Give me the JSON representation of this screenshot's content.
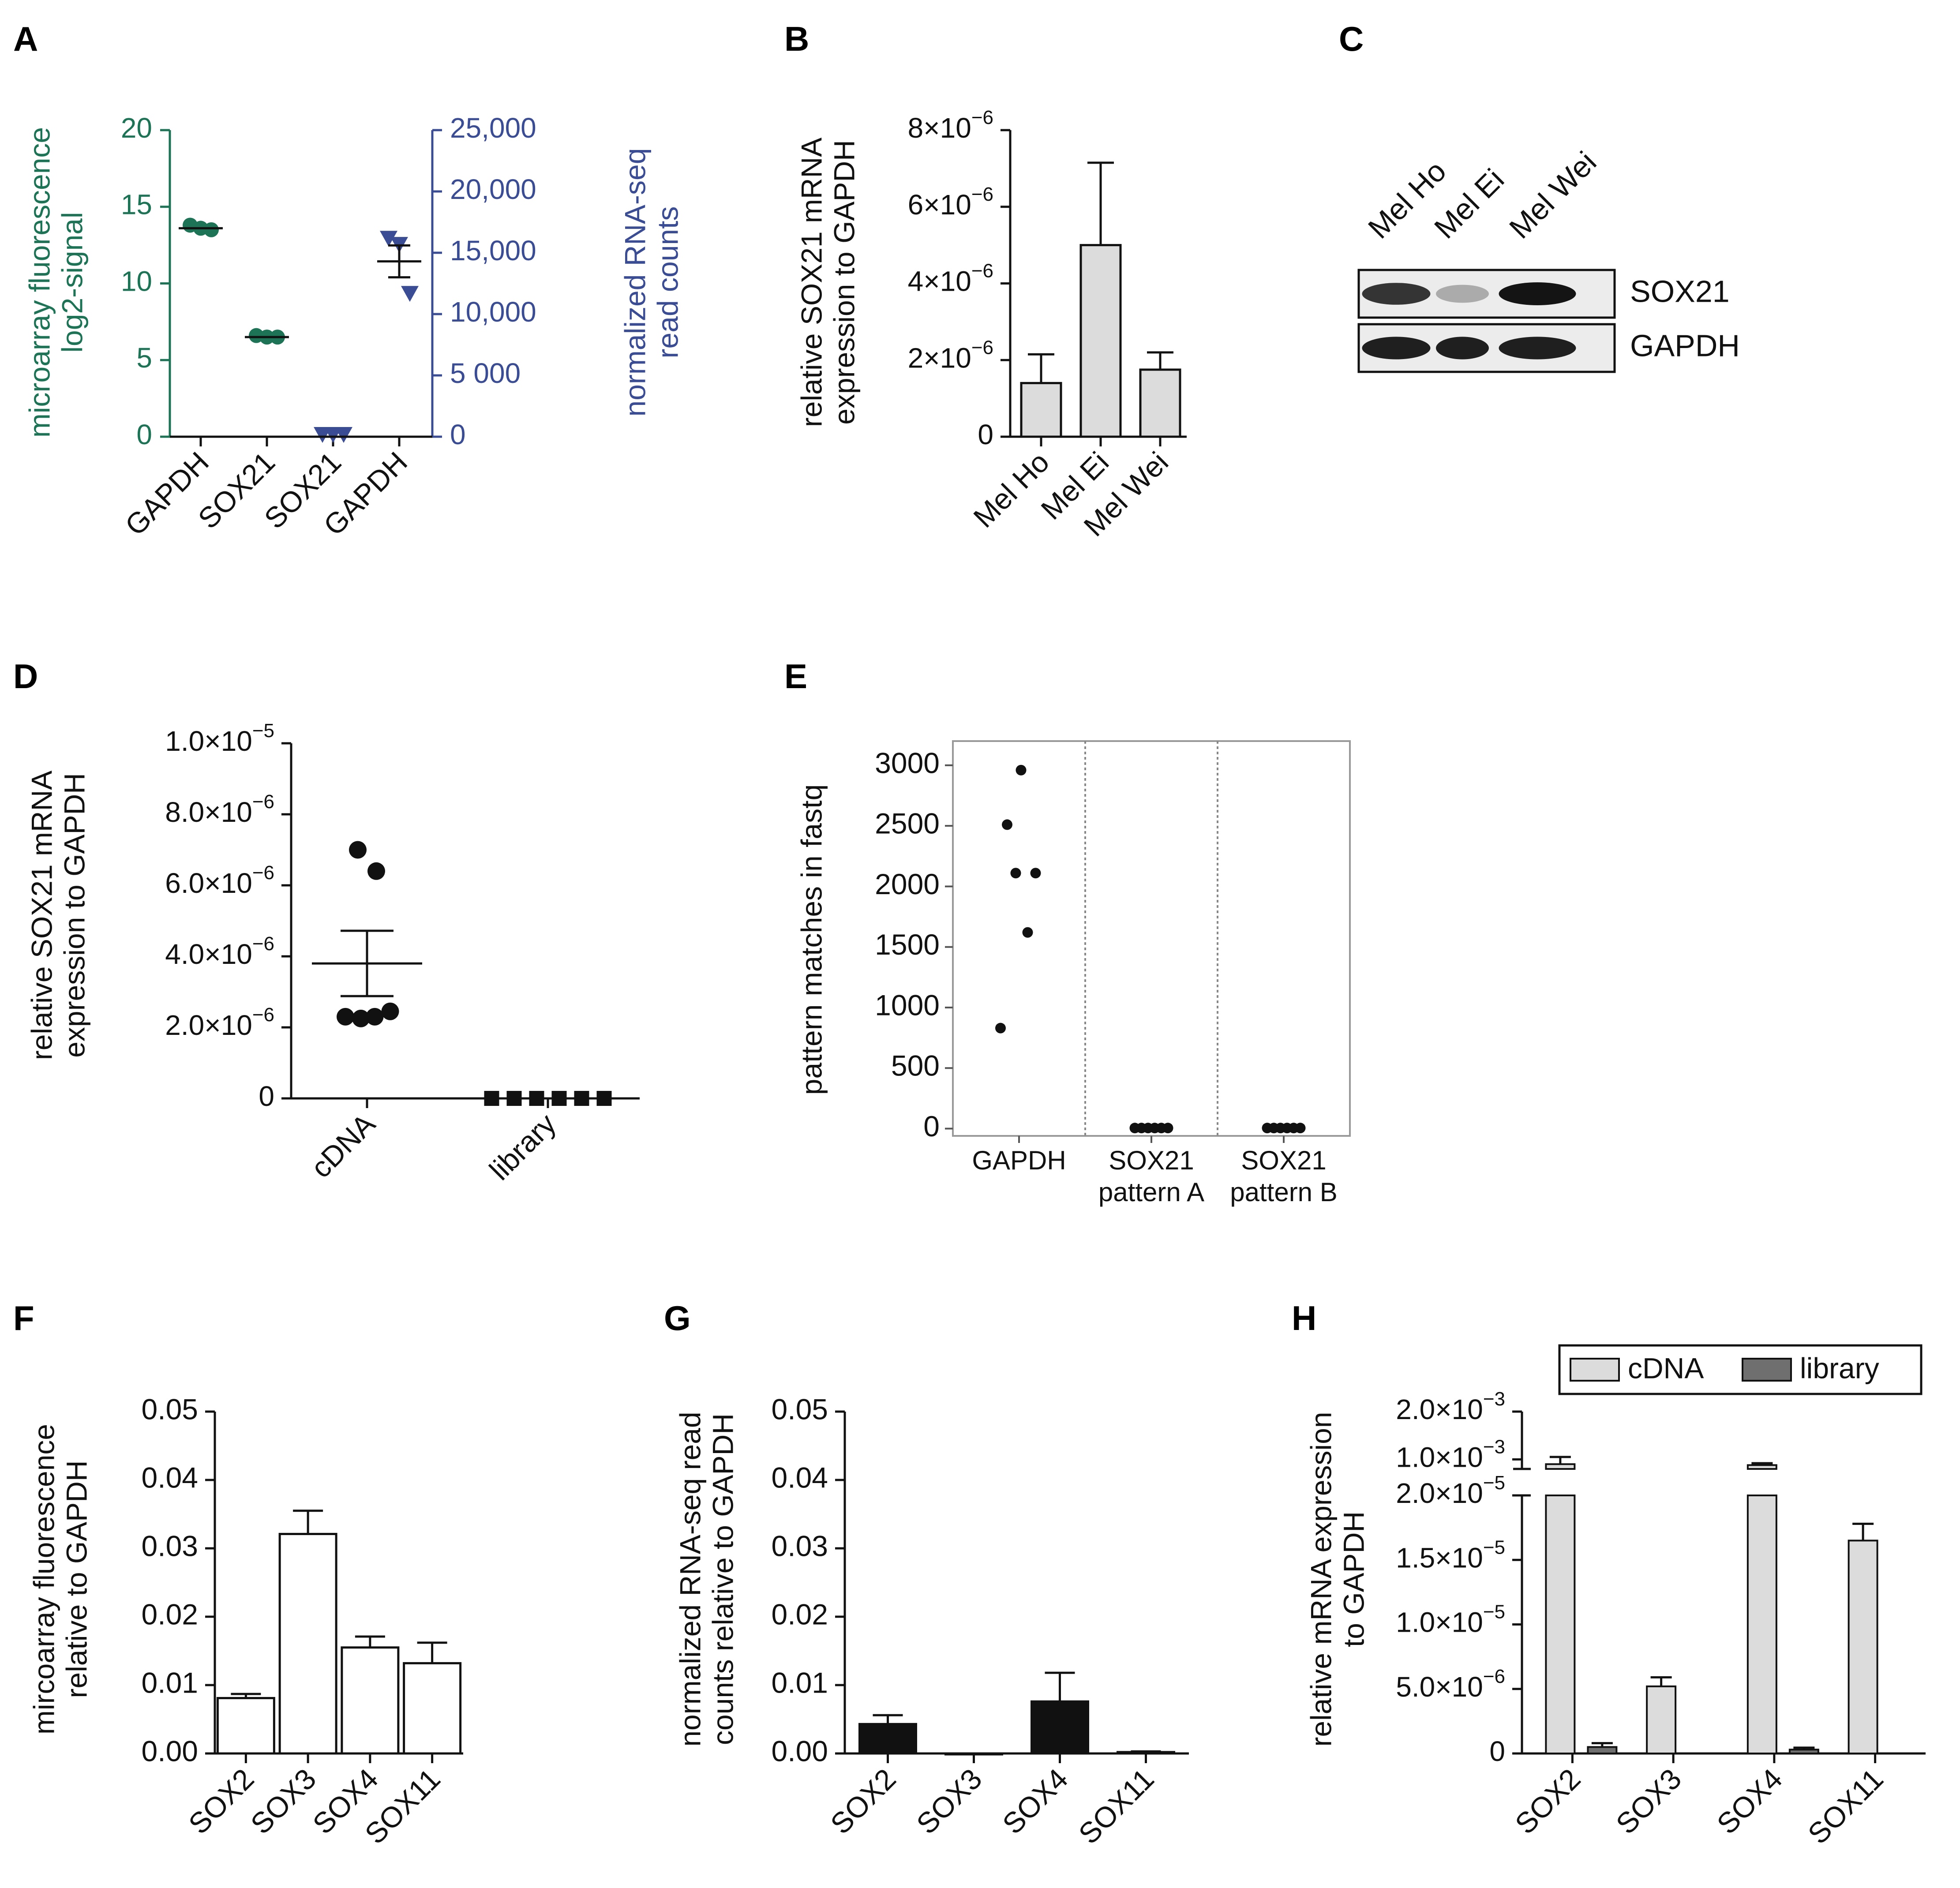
{
  "figure": {
    "colors": {
      "green": "#1d7355",
      "blue": "#3a4c94",
      "black": "#111111",
      "light_bar": "#dcdcdc",
      "dark_bar": "#6f6f6f",
      "white_bar": "#ffffff"
    }
  },
  "chart_data": [
    {
      "panel": "A",
      "type": "scatter",
      "title": "",
      "ylabel_left": [
        "microarray fluorescence",
        "log2-signal"
      ],
      "ylabel_right": [
        "normalized RNA-seq",
        "read counts"
      ],
      "yticks_left": [
        "0",
        "5",
        "10",
        "15",
        "20"
      ],
      "yticks_right": [
        "0",
        "5 000",
        "10,000",
        "15,000",
        "20,000",
        "25,000"
      ],
      "ylim_left": [
        0,
        20
      ],
      "ylim_right": [
        0,
        25000
      ],
      "categories": [
        "GAPDH",
        "SOX21",
        "SOX21",
        "GAPDH"
      ],
      "series": [
        {
          "name": "microarray log2-signal",
          "axis": "left",
          "marker": "circle",
          "color": "green",
          "points": [
            {
              "cat": 0,
              "values": [
                13.8,
                13.6,
                13.5
              ],
              "mean": 13.6
            },
            {
              "cat": 1,
              "values": [
                6.6,
                6.5,
                6.5
              ],
              "mean": 6.5
            }
          ]
        },
        {
          "name": "normalized RNA-seq read counts",
          "axis": "right",
          "marker": "triangle-down",
          "color": "blue",
          "points": [
            {
              "cat": 2,
              "values": [
                0,
                0,
                0
              ],
              "mean": 0
            },
            {
              "cat": 3,
              "values": [
                16000,
                15500,
                11500
              ],
              "mean": 14300,
              "sem": 1300
            }
          ]
        }
      ]
    },
    {
      "panel": "B",
      "type": "bar",
      "ylabel": [
        "relative SOX21 mRNA",
        "expression to GAPDH"
      ],
      "categories": [
        "Mel Ho",
        "Mel Ei",
        "Mel Wei"
      ],
      "values": [
        1.4e-06,
        5e-06,
        1.75e-06
      ],
      "errors": [
        7.5e-07,
        2.15e-06,
        4.5e-07
      ],
      "ylim": [
        0,
        8e-06
      ],
      "yticks": [
        {
          "v": 0,
          "base": "0",
          "exp": ""
        },
        {
          "v": 2e-06,
          "base": "2×10",
          "exp": "−6"
        },
        {
          "v": 4e-06,
          "base": "4×10",
          "exp": "−6"
        },
        {
          "v": 6e-06,
          "base": "6×10",
          "exp": "−6"
        },
        {
          "v": 8e-06,
          "base": "8×10",
          "exp": "−6"
        }
      ]
    },
    {
      "panel": "C",
      "type": "western-blot",
      "lanes": [
        "Mel Ho",
        "Mel Ei",
        "Mel Wei"
      ],
      "bands": [
        {
          "label": "SOX21",
          "intensity": [
            0.85,
            0.3,
            1.0
          ]
        },
        {
          "label": "GAPDH",
          "intensity": [
            0.95,
            0.95,
            0.95
          ]
        }
      ]
    },
    {
      "panel": "D",
      "type": "scatter",
      "ylabel": [
        "relative SOX21 mRNA",
        "expression to GAPDH"
      ],
      "categories": [
        "cDNA",
        "library"
      ],
      "ylim": [
        0,
        1e-05
      ],
      "yticks": [
        {
          "v": 0,
          "base": "0",
          "exp": ""
        },
        {
          "v": 2e-06,
          "base": "2.0×10",
          "exp": "−6"
        },
        {
          "v": 4e-06,
          "base": "4.0×10",
          "exp": "−6"
        },
        {
          "v": 6e-06,
          "base": "6.0×10",
          "exp": "−6"
        },
        {
          "v": 8e-06,
          "base": "8.0×10",
          "exp": "−6"
        },
        {
          "v": 1e-05,
          "base": "1.0×10",
          "exp": "−5"
        }
      ],
      "series": [
        {
          "name": "cDNA",
          "marker": "circle",
          "points": [
            {
              "x": -0.7,
              "y": 2.3e-06
            },
            {
              "x": -0.2,
              "y": 2.25e-06
            },
            {
              "x": 0.25,
              "y": 2.3e-06
            },
            {
              "x": 0.75,
              "y": 2.45e-06
            },
            {
              "x": -0.3,
              "y": 7e-06
            },
            {
              "x": 0.3,
              "y": 6.4e-06
            }
          ],
          "mean": 3.8e-06,
          "sem": 9.2e-07
        },
        {
          "name": "library",
          "marker": "square",
          "points": [
            {
              "x": -0.75,
              "y": 0
            },
            {
              "x": -0.45,
              "y": 0
            },
            {
              "x": -0.15,
              "y": 0
            },
            {
              "x": 0.15,
              "y": 0
            },
            {
              "x": 0.45,
              "y": 0
            },
            {
              "x": 0.75,
              "y": 0
            }
          ]
        }
      ]
    },
    {
      "panel": "E",
      "type": "scatter",
      "ylabel": "pattern matches in fastq",
      "categories": [
        [
          "GAPDH"
        ],
        [
          "SOX21",
          "pattern A"
        ],
        [
          "SOX21",
          "pattern B"
        ]
      ],
      "ylim": [
        -60,
        3200
      ],
      "yticks": [
        "0",
        "500",
        "1000",
        "1500",
        "2000",
        "2500",
        "3000"
      ],
      "yticks_values": [
        0,
        500,
        1000,
        1500,
        2000,
        2500,
        3000
      ],
      "groups": [
        {
          "cat": 0,
          "points": [
            {
              "x": -0.28,
              "y": 830
            },
            {
              "x": -0.18,
              "y": 2510
            },
            {
              "x": -0.05,
              "y": 2110
            },
            {
              "x": 0.03,
              "y": 2960
            },
            {
              "x": 0.13,
              "y": 1620
            },
            {
              "x": 0.25,
              "y": 2110
            }
          ]
        },
        {
          "cat": 1,
          "points": [
            {
              "x": -0.25,
              "y": 5
            },
            {
              "x": -0.15,
              "y": 5
            },
            {
              "x": -0.05,
              "y": 5
            },
            {
              "x": 0.05,
              "y": 5
            },
            {
              "x": 0.15,
              "y": 5
            },
            {
              "x": 0.25,
              "y": 5
            }
          ]
        },
        {
          "cat": 2,
          "points": [
            {
              "x": -0.25,
              "y": 5
            },
            {
              "x": -0.15,
              "y": 5
            },
            {
              "x": -0.05,
              "y": 5
            },
            {
              "x": 0.05,
              "y": 5
            },
            {
              "x": 0.15,
              "y": 5
            },
            {
              "x": 0.25,
              "y": 5
            }
          ]
        }
      ]
    },
    {
      "panel": "F",
      "type": "bar",
      "ylabel": [
        "mircoarray fluorescence",
        "relative to GAPDH"
      ],
      "categories": [
        "SOX2",
        "SOX3",
        "SOX4",
        "SOX11"
      ],
      "values": [
        0.0081,
        0.0321,
        0.0155,
        0.0132
      ],
      "errors": [
        0.0006,
        0.0034,
        0.0016,
        0.003
      ],
      "ylim": [
        0,
        0.05
      ],
      "yticks": [
        "0.00",
        "0.01",
        "0.02",
        "0.03",
        "0.04",
        "0.05"
      ],
      "yticks_values": [
        0,
        0.01,
        0.02,
        0.03,
        0.04,
        0.05
      ]
    },
    {
      "panel": "G",
      "type": "bar",
      "ylabel": [
        "normalized RNA-seq read",
        "counts relative to GAPDH"
      ],
      "categories": [
        "SOX2",
        "SOX3",
        "SOX4",
        "SOX11"
      ],
      "values": [
        0.0043,
        0,
        0.0076,
        0.0002
      ],
      "errors": [
        0.0013,
        0,
        0.0042,
        0.0001
      ],
      "ylim": [
        0,
        0.05
      ],
      "yticks": [
        "0.00",
        "0.01",
        "0.02",
        "0.03",
        "0.04",
        "0.05"
      ],
      "yticks_values": [
        0,
        0.01,
        0.02,
        0.03,
        0.04,
        0.05
      ]
    },
    {
      "panel": "H",
      "type": "bar",
      "ylabel": [
        "relative mRNA expression",
        "to GAPDH"
      ],
      "categories": [
        "SOX2",
        "SOX3",
        "SOX4",
        "SOX11"
      ],
      "legend": {
        "position": "top-right",
        "entries": [
          "cDNA",
          "library"
        ]
      },
      "series": [
        {
          "name": "cDNA",
          "values": [
            0.0009,
            5.2e-06,
            0.00088,
            1.65e-05
          ],
          "errors": [
            0.00015,
            7e-07,
            4e-05,
            1.3e-06
          ]
        },
        {
          "name": "library",
          "values": [
            5e-07,
            0,
            3e-07,
            0
          ],
          "errors": [
            3e-07,
            0,
            1.5e-07,
            0
          ]
        }
      ],
      "axis_break": {
        "lower_range": [
          0,
          2e-05
        ],
        "upper_range": [
          0.0008,
          0.002
        ]
      },
      "yticks_lower": [
        {
          "v": 0,
          "base": "0",
          "exp": ""
        },
        {
          "v": 5e-06,
          "base": "5.0×10",
          "exp": "−6"
        },
        {
          "v": 1e-05,
          "base": "1.0×10",
          "exp": "−5"
        },
        {
          "v": 1.5e-05,
          "base": "1.5×10",
          "exp": "−5"
        },
        {
          "v": 2e-05,
          "base": "2.0×10",
          "exp": "−5"
        }
      ],
      "yticks_upper": [
        {
          "v": 0.001,
          "base": "1.0×10",
          "exp": "−3"
        },
        {
          "v": 0.002,
          "base": "2.0×10",
          "exp": "−3"
        }
      ]
    }
  ]
}
